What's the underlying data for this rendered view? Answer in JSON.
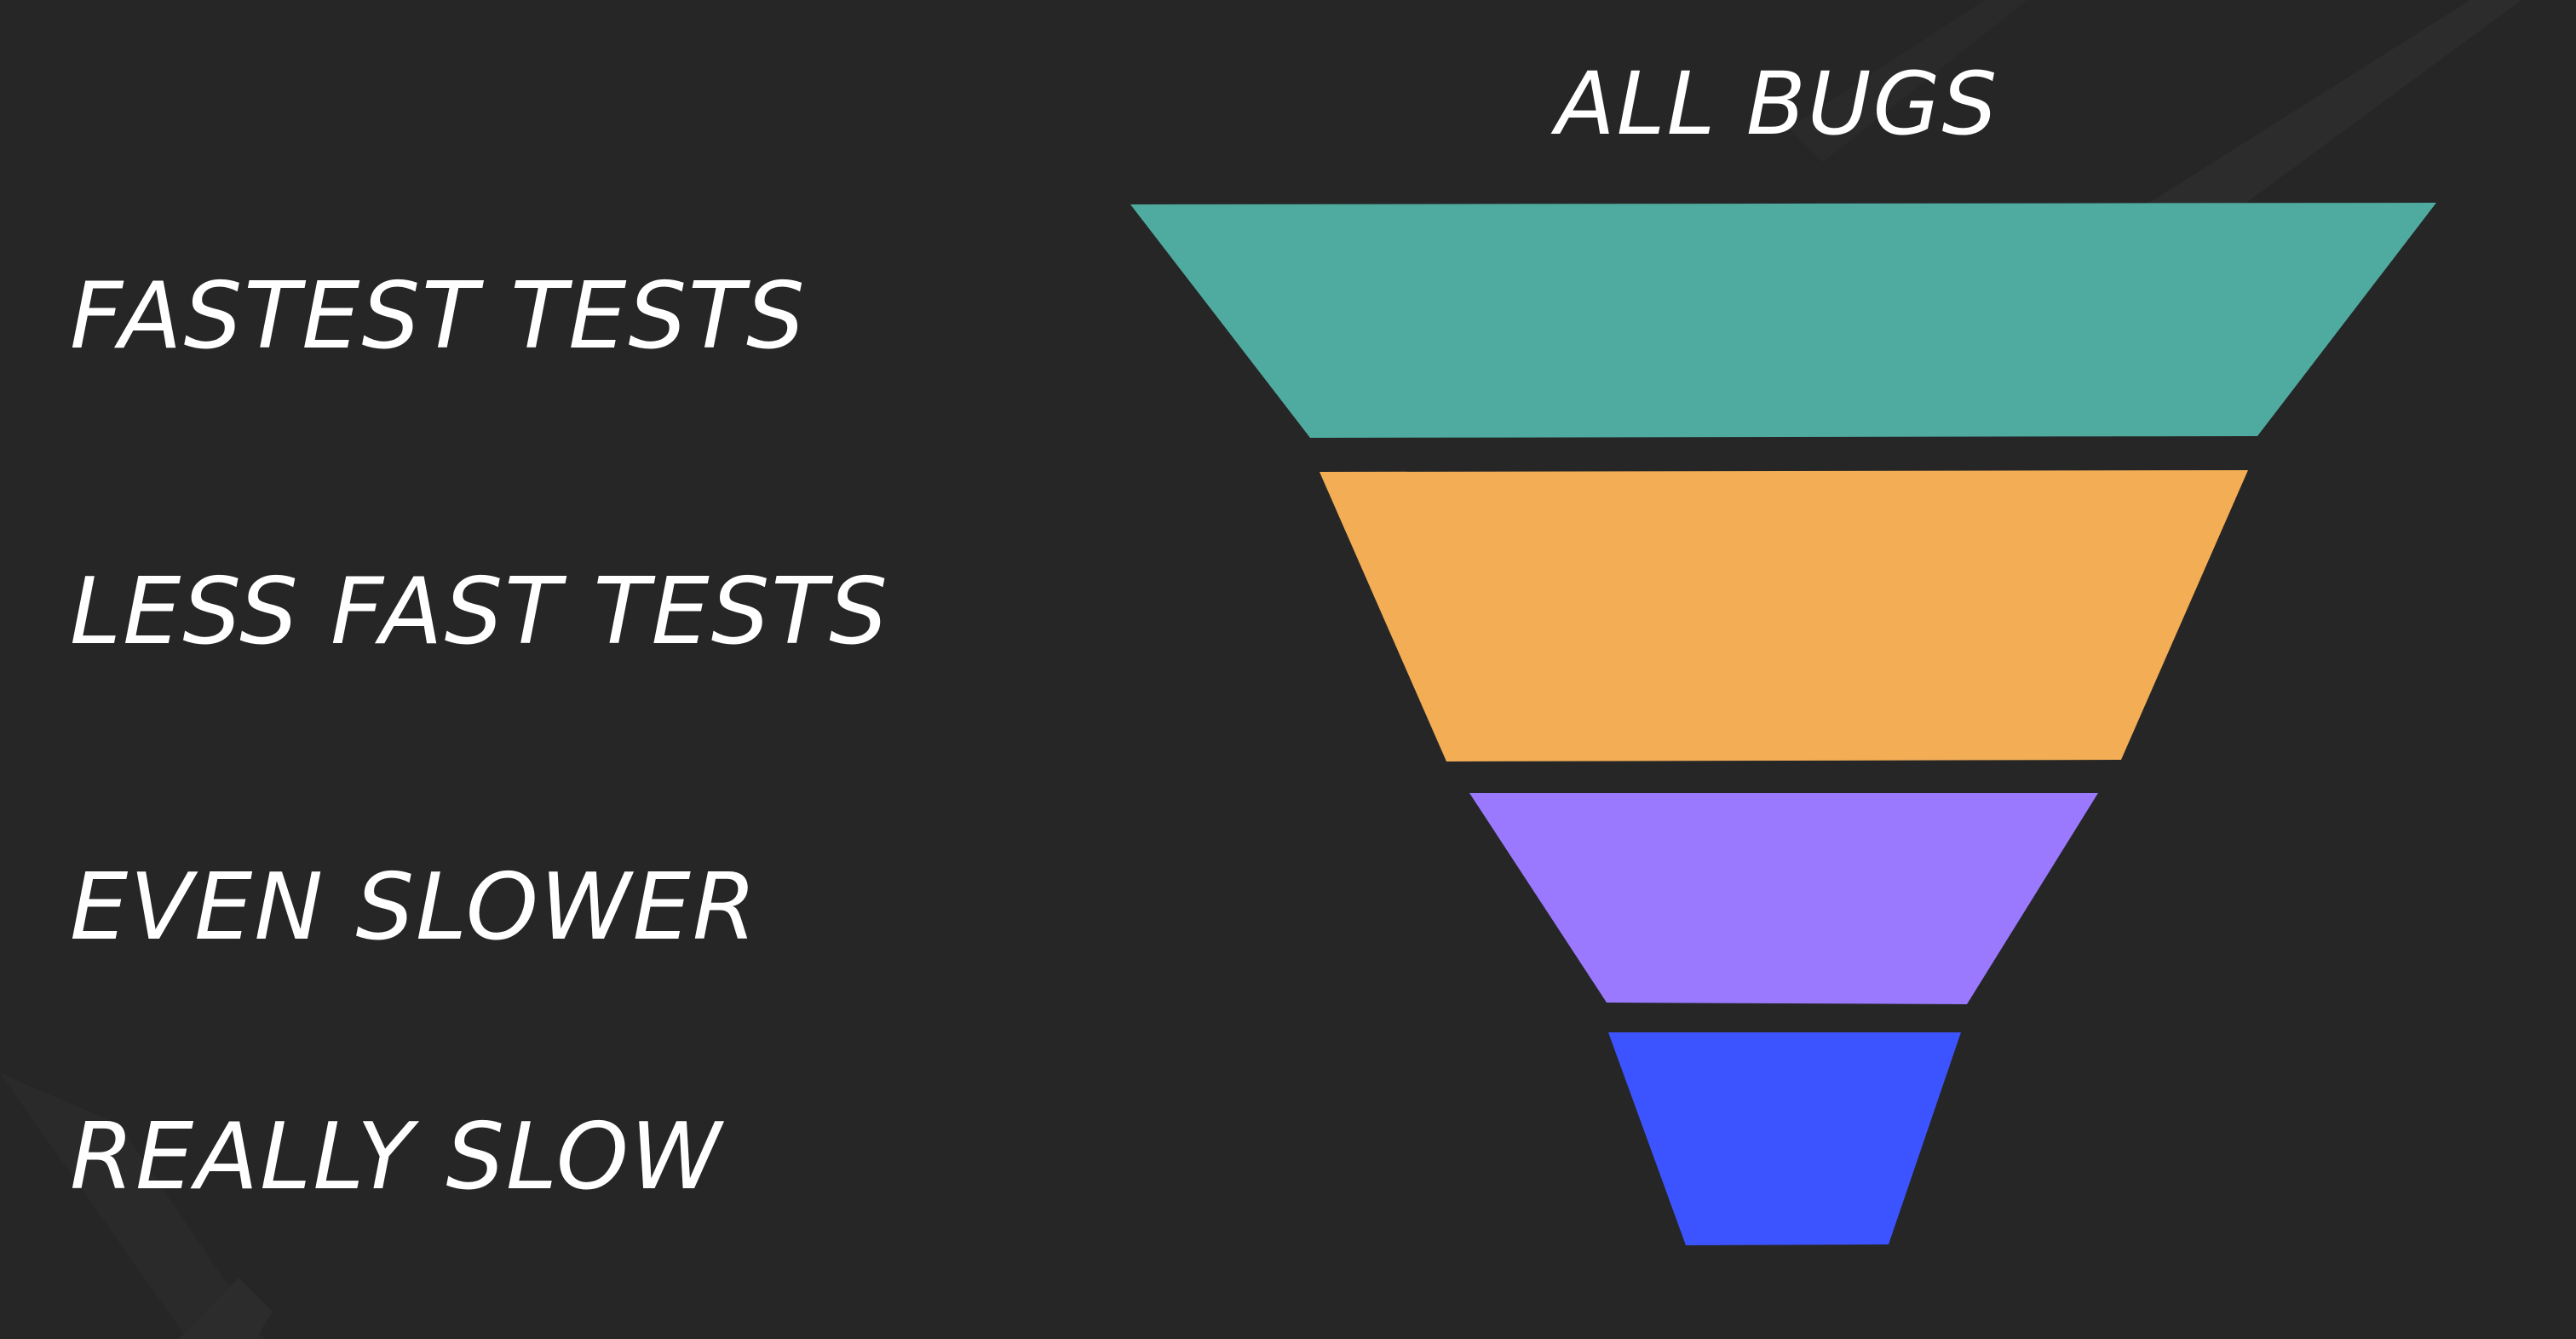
{
  "top_label": "ALL BUGS",
  "stages": [
    {
      "label": "FASTEST TESTS",
      "color": "#4FABA0"
    },
    {
      "label": "LESS FAST TESTS",
      "color": "#F2AD55"
    },
    {
      "label": "EVEN SLOWER",
      "color": "#9A79FF"
    },
    {
      "label": "REALLY SLOW",
      "color": "#3C54FF"
    }
  ],
  "background_color": "#262626"
}
